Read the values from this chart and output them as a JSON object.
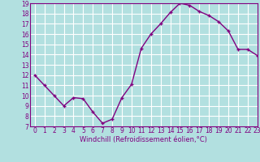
{
  "x": [
    0,
    1,
    2,
    3,
    4,
    5,
    6,
    7,
    8,
    9,
    10,
    11,
    12,
    13,
    14,
    15,
    16,
    17,
    18,
    19,
    20,
    21,
    22,
    23
  ],
  "y": [
    12,
    11,
    10,
    9,
    9.8,
    9.7,
    8.4,
    7.3,
    7.7,
    9.8,
    11.1,
    14.6,
    16.0,
    17.0,
    18.1,
    19.0,
    18.8,
    18.2,
    17.8,
    17.2,
    16.3,
    14.5,
    14.5,
    13.9
  ],
  "line_color": "#800080",
  "marker": "+",
  "marker_color": "#800080",
  "bg_color": "#b2e0e0",
  "grid_color": "#ffffff",
  "xlabel": "Windchill (Refroidissement éolien,°C)",
  "xlabel_color": "#800080",
  "tick_color": "#800080",
  "ylim": [
    7,
    19
  ],
  "xlim": [
    -0.5,
    23
  ],
  "yticks": [
    7,
    8,
    9,
    10,
    11,
    12,
    13,
    14,
    15,
    16,
    17,
    18,
    19
  ],
  "xticks": [
    0,
    1,
    2,
    3,
    4,
    5,
    6,
    7,
    8,
    9,
    10,
    11,
    12,
    13,
    14,
    15,
    16,
    17,
    18,
    19,
    20,
    21,
    22,
    23
  ],
  "axis_fontsize": 5.5,
  "label_fontsize": 6.0,
  "line_width": 1.0,
  "marker_size": 3.5
}
